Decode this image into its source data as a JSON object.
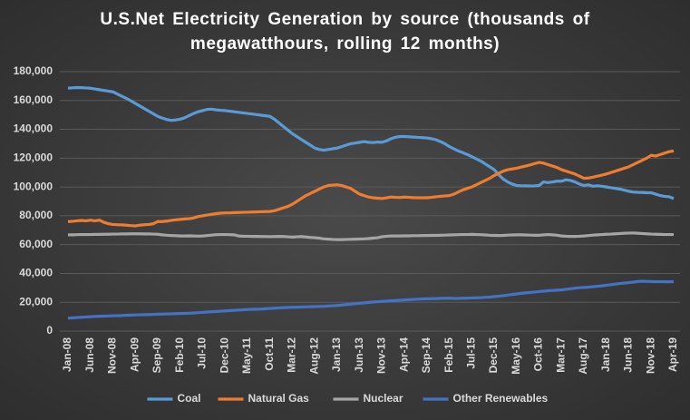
{
  "chart_data": {
    "type": "line",
    "title": "U.S.Net Electricity Generation by source (thousands of megawatthours, rolling 12 months)",
    "categories": [
      "Jan-08",
      null,
      null,
      null,
      null,
      "Jun-08",
      null,
      null,
      null,
      null,
      "Nov-08",
      null,
      null,
      null,
      null,
      "Apr-09",
      null,
      null,
      null,
      null,
      "Sep-09",
      null,
      null,
      null,
      null,
      "Feb-10",
      null,
      null,
      null,
      null,
      "Jul-10",
      null,
      null,
      null,
      null,
      "Dec-10",
      null,
      null,
      null,
      null,
      "May-11",
      null,
      null,
      null,
      null,
      "Oct-11",
      null,
      null,
      null,
      null,
      "Mar-12",
      null,
      null,
      null,
      null,
      "Aug-12",
      null,
      null,
      null,
      null,
      "Jan-13",
      null,
      null,
      null,
      null,
      "Jun-13",
      null,
      null,
      null,
      null,
      "Nov-13",
      null,
      null,
      null,
      null,
      "Apr-14",
      null,
      null,
      null,
      null,
      "Sep-14",
      null,
      null,
      null,
      null,
      "Feb-15",
      null,
      null,
      null,
      null,
      "Jul-15",
      null,
      null,
      null,
      null,
      "Dec-15",
      null,
      null,
      null,
      null,
      "May-16",
      null,
      null,
      null,
      null,
      "Oct-16",
      null,
      null,
      null,
      null,
      "Mar-17",
      null,
      null,
      null,
      null,
      "Aug-17",
      null,
      null,
      null,
      null,
      "Jan-18",
      null,
      null,
      null,
      null,
      "Jun-18",
      null,
      null,
      null,
      null,
      "Nov-18",
      null,
      null,
      null,
      null,
      "Apr-19"
    ],
    "series": [
      {
        "name": "Coal",
        "color": "#5b9bd5",
        "values": [
          168500,
          168800,
          169000,
          168900,
          168700,
          168500,
          168000,
          167500,
          167000,
          166500,
          166000,
          164500,
          163000,
          161500,
          159800,
          158000,
          156200,
          154400,
          152600,
          150800,
          149000,
          147800,
          146800,
          146200,
          146500,
          147000,
          148000,
          149500,
          151000,
          152200,
          153000,
          153800,
          154000,
          153500,
          153200,
          153000,
          152600,
          152200,
          151800,
          151400,
          151000,
          150600,
          150200,
          149800,
          149400,
          149000,
          147000,
          144500,
          142000,
          139500,
          137000,
          135000,
          133000,
          131000,
          129000,
          127000,
          126000,
          125500,
          126000,
          126500,
          127000,
          128000,
          129000,
          130000,
          130500,
          131000,
          131500,
          131000,
          130800,
          131200,
          131000,
          132000,
          133500,
          134500,
          135000,
          135000,
          134800,
          134600,
          134400,
          134200,
          134000,
          133500,
          132800,
          131500,
          130000,
          128000,
          126500,
          125000,
          123800,
          122500,
          121000,
          119500,
          118000,
          116000,
          114000,
          112000,
          108500,
          105500,
          103500,
          102000,
          101000,
          100800,
          100800,
          100700,
          100800,
          101000,
          103500,
          103000,
          103500,
          104000,
          104000,
          105000,
          104500,
          103500,
          102000,
          101000,
          101500,
          100500,
          100800,
          100500,
          100000,
          99500,
          99000,
          98500,
          97800,
          97000,
          96500,
          96300,
          96200,
          96000,
          96000,
          95000,
          94000,
          93500,
          93200,
          92000
        ]
      },
      {
        "name": "Natural Gas",
        "color": "#ed7d31",
        "values": [
          76000,
          76200,
          76500,
          76800,
          76500,
          77000,
          76500,
          77000,
          75500,
          74500,
          74000,
          73800,
          73700,
          73500,
          73200,
          73000,
          73500,
          73800,
          74000,
          74500,
          76000,
          76000,
          76300,
          76800,
          77200,
          77500,
          77800,
          78000,
          78500,
          79500,
          80000,
          80500,
          81000,
          81500,
          81800,
          82000,
          82000,
          82200,
          82300,
          82400,
          82500,
          82600,
          82700,
          82800,
          82900,
          83000,
          83500,
          84500,
          85500,
          86500,
          88000,
          90000,
          92000,
          94000,
          95500,
          97000,
          98500,
          100000,
          101000,
          101300,
          101500,
          101000,
          100000,
          99000,
          97000,
          95000,
          94000,
          93000,
          92500,
          92200,
          92000,
          92500,
          93000,
          92800,
          92700,
          93000,
          92800,
          92600,
          92500,
          92500,
          92500,
          92800,
          93200,
          93500,
          93800,
          94000,
          95000,
          96500,
          98000,
          99000,
          100000,
          101500,
          103000,
          104500,
          106000,
          108000,
          109500,
          111000,
          112000,
          112500,
          113000,
          113800,
          114500,
          115300,
          116200,
          117000,
          116500,
          115500,
          114500,
          113500,
          112000,
          111000,
          110000,
          109000,
          107500,
          106000,
          106200,
          106800,
          107500,
          108200,
          109000,
          110000,
          111000,
          112000,
          113000,
          114000,
          115500,
          117000,
          118500,
          120000,
          122000,
          121500,
          122500,
          123500,
          124500,
          125000
        ]
      },
      {
        "name": "Nuclear",
        "color": "#a5a5a5",
        "values": [
          66800,
          66800,
          66900,
          67000,
          67000,
          67000,
          67100,
          67100,
          67200,
          67200,
          67300,
          67300,
          67400,
          67400,
          67500,
          67500,
          67500,
          67400,
          67400,
          67300,
          67200,
          66800,
          66500,
          66300,
          66200,
          66000,
          66000,
          66100,
          66000,
          65900,
          66000,
          66300,
          66600,
          66900,
          67000,
          67000,
          66900,
          66800,
          66000,
          65800,
          65800,
          65700,
          65700,
          65600,
          65600,
          65500,
          65600,
          65700,
          65600,
          65400,
          65200,
          65400,
          65600,
          65300,
          65000,
          64800,
          64500,
          64000,
          63800,
          63600,
          63500,
          63500,
          63600,
          63700,
          63800,
          63900,
          64000,
          64200,
          64500,
          64800,
          65500,
          65800,
          66000,
          66000,
          66000,
          66100,
          66100,
          66200,
          66200,
          66300,
          66300,
          66400,
          66400,
          66500,
          66600,
          66700,
          66800,
          66900,
          67000,
          67000,
          67100,
          67000,
          66900,
          66700,
          66500,
          66400,
          66300,
          66400,
          66600,
          66700,
          66800,
          66800,
          66700,
          66600,
          66500,
          66500,
          66800,
          67000,
          66800,
          66500,
          66000,
          65800,
          65700,
          65700,
          65800,
          66000,
          66300,
          66600,
          66800,
          67000,
          67200,
          67300,
          67500,
          67700,
          67900,
          68000,
          68100,
          67900,
          67700,
          67500,
          67300,
          67200,
          67100,
          67000,
          67000,
          67000
        ]
      },
      {
        "name": "Other Renewables",
        "color": "#4472c4",
        "values": [
          9000,
          9200,
          9400,
          9600,
          9800,
          10000,
          10200,
          10300,
          10400,
          10500,
          10600,
          10700,
          10800,
          11000,
          11100,
          11200,
          11300,
          11400,
          11500,
          11600,
          11700,
          11800,
          11900,
          12000,
          12100,
          12200,
          12300,
          12400,
          12600,
          12800,
          13000,
          13200,
          13400,
          13600,
          13800,
          14000,
          14200,
          14400,
          14600,
          14800,
          15000,
          15100,
          15200,
          15300,
          15500,
          15700,
          15900,
          16100,
          16300,
          16400,
          16500,
          16600,
          16700,
          16800,
          16900,
          17000,
          17100,
          17200,
          17400,
          17600,
          17800,
          18100,
          18400,
          18700,
          19000,
          19300,
          19600,
          19900,
          20200,
          20400,
          20600,
          20800,
          21000,
          21200,
          21400,
          21600,
          21800,
          22000,
          22200,
          22300,
          22400,
          22500,
          22600,
          22700,
          22800,
          22800,
          22700,
          22700,
          22800,
          22900,
          23000,
          23100,
          23200,
          23400,
          23600,
          23900,
          24200,
          24600,
          25000,
          25400,
          25800,
          26200,
          26500,
          26800,
          27100,
          27400,
          27700,
          28000,
          28200,
          28400,
          28600,
          29000,
          29400,
          29800,
          30100,
          30300,
          30500,
          30800,
          31100,
          31400,
          31800,
          32200,
          32600,
          33000,
          33300,
          33600,
          34000,
          34400,
          34600,
          34500,
          34400,
          34300,
          34300,
          34200,
          34200,
          34300
        ]
      }
    ],
    "ylim": [
      0,
      180000
    ],
    "yticks": [
      0,
      {
        "value": 20000,
        "label": "20,000"
      },
      {
        "value": 40000,
        "label": "40,000"
      },
      {
        "value": 60000,
        "label": "60,000"
      },
      {
        "value": 80000,
        "label": "80,000"
      },
      {
        "value": 100000,
        "label": "100,000"
      },
      {
        "value": 120000,
        "label": "120,000"
      },
      {
        "value": 140000,
        "label": "140,000"
      },
      {
        "value": 160000,
        "label": "160,000"
      },
      {
        "value": 180000,
        "label": "180,000"
      }
    ],
    "grid": true,
    "legend": "bottom"
  }
}
